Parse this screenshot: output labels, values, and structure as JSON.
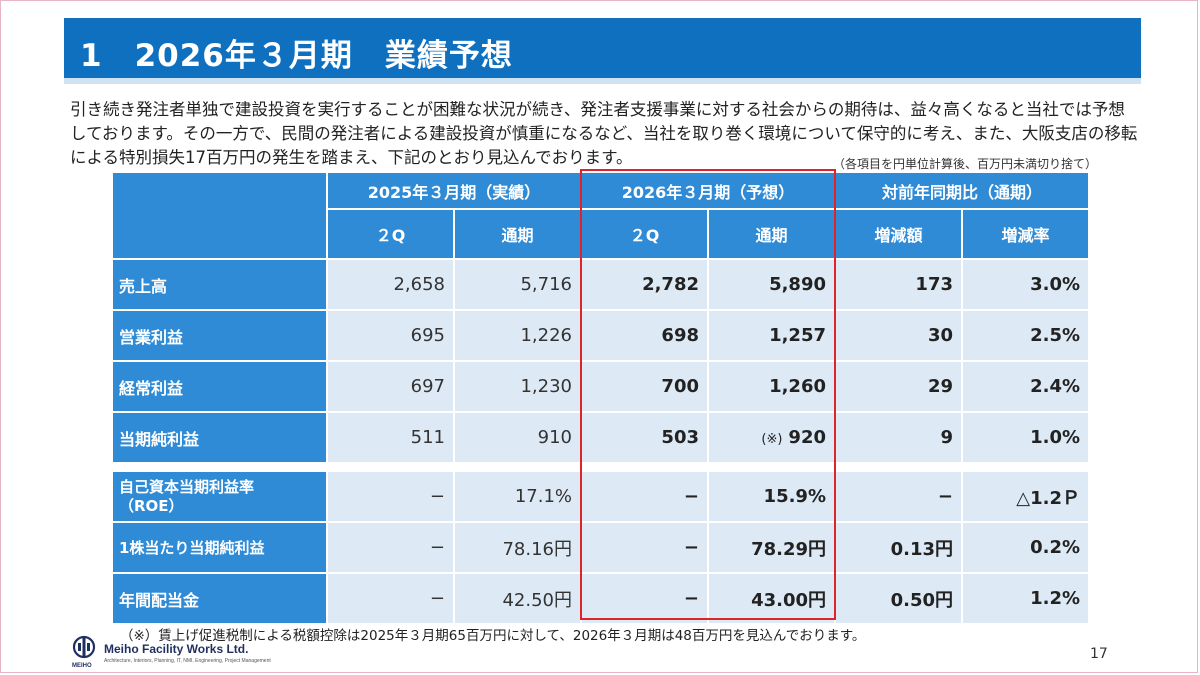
{
  "slide": {
    "title": "1　2026年３月期　業績予想",
    "intro": "引き続き発注者単独で建設投資を実行することが困難な状況が続き、発注者支援事業に対する社会からの期待は、益々高くなると当社では予想しております。その一方で、民間の発注者による建設投資が慎重になるなど、当社を取り巻く環境について保守的に考え、また、大阪支店の移転による特別損失17百万円の発生を踏まえ、下記のとおり見込んでおります。",
    "unit_note": "（各項目を円単位計算後、百万円未満切り捨て）",
    "footnote": "（※）賃上げ促進税制による税額控除は2025年３月期65百万円に対して、2026年３月期は48百万円を見込んでおります。",
    "page_number": "17"
  },
  "table": {
    "group_headers": [
      "2025年３月期（実績）",
      "2026年３月期（予想）",
      "対前年同期比（通期）"
    ],
    "sub_headers": [
      "２Q",
      "通期",
      "２Q",
      "通期",
      "増減額",
      "増減率"
    ],
    "rows": [
      {
        "label": "売上高",
        "values": [
          "2,658",
          "5,716",
          "2,782",
          "5,890",
          "173",
          "3.0%"
        ]
      },
      {
        "label": "営業利益",
        "values": [
          "695",
          "1,226",
          "698",
          "1,257",
          "30",
          "2.5%"
        ]
      },
      {
        "label": "経常利益",
        "values": [
          "697",
          "1,230",
          "700",
          "1,260",
          "29",
          "2.4%"
        ]
      },
      {
        "label": "当期純利益",
        "values": [
          "511",
          "910",
          "503",
          "920",
          "9",
          "1.0%"
        ],
        "note_mark": "(※)"
      },
      {
        "label_line1": "自己資本当期利益率",
        "label_line2": "（ROE）",
        "values": [
          "−",
          "17.1%",
          "−",
          "15.9%",
          "−",
          "△1.2Ｐ"
        ]
      },
      {
        "label": "1株当たり当期純利益",
        "values": [
          "−",
          "78.16円",
          "−",
          "78.29円",
          "0.13円",
          "0.2%"
        ]
      },
      {
        "label": "年間配当金",
        "values": [
          "−",
          "42.50円",
          "−",
          "43.00円",
          "0.50円",
          "1.2%"
        ]
      }
    ]
  },
  "logo": {
    "name": "Meiho Facility Works Ltd.",
    "tagline": "Architecture, Interiors, Planning, IT, NMI, Engineering, Project Management",
    "mark_text": "MEIHO"
  },
  "colors": {
    "title_bar": "#0f70bf",
    "header_blue": "#2f8bd6",
    "cell_bg": "#ddeaf6",
    "highlight_red": "#e0222a"
  }
}
